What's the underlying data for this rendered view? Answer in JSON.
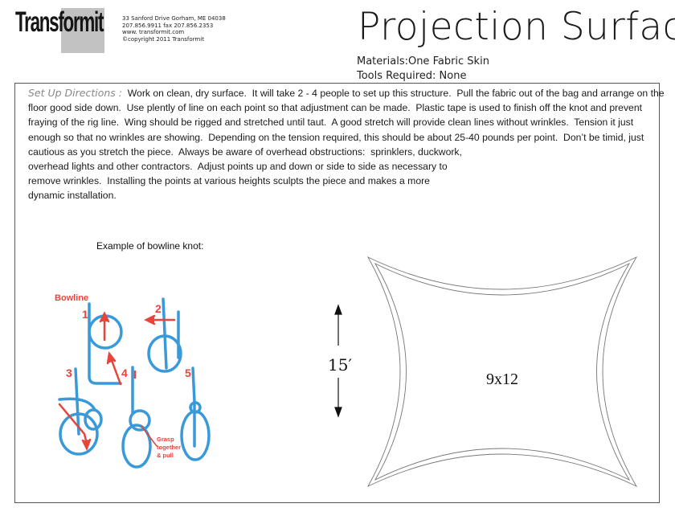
{
  "header": {
    "logo": "Transformit",
    "contact": [
      "33 Sanford Drive Gorham, ME 04038",
      "207.856.9911 fax 207.856.2353",
      "www. transformit.com",
      "©copyright 2011 Transformit"
    ],
    "title": "Projection Surface",
    "materials": "Materials:One Fabric Skin",
    "tools": "Tools Required: None"
  },
  "directions": {
    "label": "Set Up Directions :",
    "lines": [
      "  Work on clean, dry surface.  It will take 2 - 4 people to set up this structure.  Pull the fabric out of the bag and arrange on the",
      "floor good side down.  Use plently of line on each point so that adjustment can be made.  Plastic tape is used to finish off the knot and prevent",
      "fraying of the rig line.  Wing should be rigged and stretched until taut.  A good stretch will provide clean lines without wrinkles.  Tension it just",
      "enough so that no wrinkles are showing.  Depending on the tension required, this should be about 25-40 pounds per point.  Don’t be timid, just",
      "cautious as you stretch the piece.  Always be aware of overhead obstructions:  sprinklers, duckwork,",
      "overhead lights and other contractors.  Adjust points up and down or side to side as necessary to",
      "remove wrinkles.  Installing the points at various heights sculpts the piece and makes a more",
      "dynamic installation."
    ]
  },
  "knot": {
    "caption": "Example of bowline knot:",
    "title": "Bowline",
    "steps": [
      "1",
      "2",
      "3",
      "4",
      "5"
    ],
    "note": [
      "Grasp",
      "together",
      "& pull"
    ],
    "colors": {
      "rope": "#3a9ad9",
      "arrow": "#e8443a"
    }
  },
  "diagram": {
    "height_label": "15′",
    "size_label": "9x12"
  }
}
